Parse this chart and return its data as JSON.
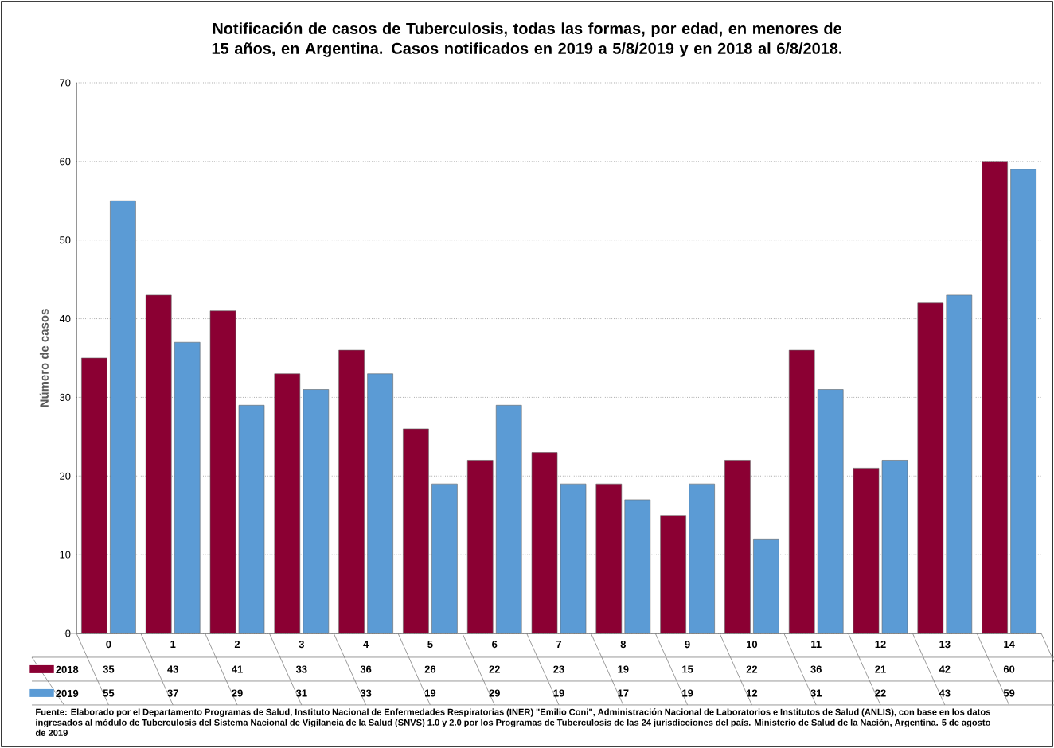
{
  "chart_data": {
    "type": "bar",
    "title": "Notificación de casos de Tuberculosis, todas las formas, por edad, en menores de 15 años, en Argentina. Casos notificados en 2019 a 5/8/2019 y en 2018 al 6/8/2018.",
    "ylabel": "Número de casos",
    "categories": [
      "0",
      "1",
      "2",
      "3",
      "4",
      "5",
      "6",
      "7",
      "8",
      "9",
      "10",
      "11",
      "12",
      "13",
      "14"
    ],
    "series": [
      {
        "name": "2018",
        "color": "#8b0033",
        "values": [
          35,
          43,
          41,
          33,
          36,
          26,
          22,
          23,
          19,
          15,
          22,
          36,
          21,
          42,
          60
        ]
      },
      {
        "name": "2019",
        "color": "#5b9bd5",
        "values": [
          55,
          37,
          29,
          31,
          33,
          19,
          29,
          19,
          17,
          19,
          12,
          31,
          22,
          43,
          59
        ]
      }
    ],
    "ylim": [
      0,
      70
    ],
    "yticks": [
      0,
      10,
      20,
      30,
      40,
      50,
      60,
      70
    ],
    "grid": "y",
    "legend": "bottom",
    "data_labels": true,
    "annotations": [
      "Fuente: Elaborado por el Departamento Programas de Salud, Instituto Nacional de Enfermedades Respiratorias (INER) \"Emilio Coni\", Administración Nacional de Laboratorios e Institutos de Salud (ANLIS), con base en los datos ingresados al módulo de Tuberculosis del Sistema Nacional de Vigilancia de la Salud (SNVS) 1.0 y 2.0 por los Programas de Tuberculosis de las 24 jurisdicciones del país. Ministerio de Salud de la Nación, Argentina. 5 de agosto de 2019"
    ]
  }
}
